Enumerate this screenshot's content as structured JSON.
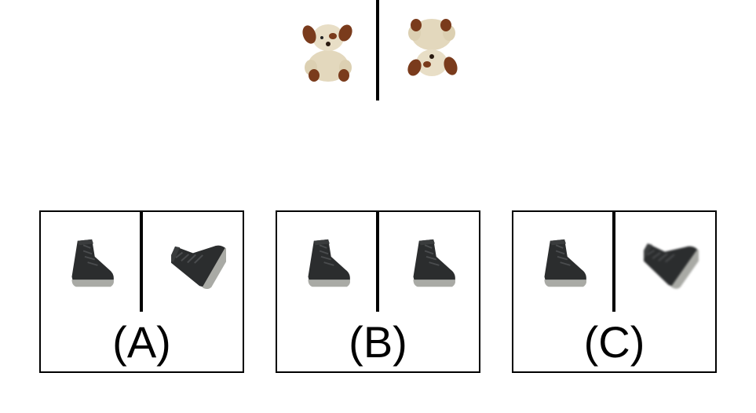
{
  "prompt": {
    "left_image": "teddy-dog-upright",
    "right_image": "teddy-dog-upside-down"
  },
  "options": [
    {
      "label": "(A)",
      "left_image": "black-boot-upright",
      "right_image": "black-boot-tilted"
    },
    {
      "label": "(B)",
      "left_image": "black-boot-upright",
      "right_image": "black-boot-mirrored"
    },
    {
      "label": "(C)",
      "left_image": "black-boot-upright",
      "right_image": "black-boot-rotated-blurred"
    }
  ]
}
